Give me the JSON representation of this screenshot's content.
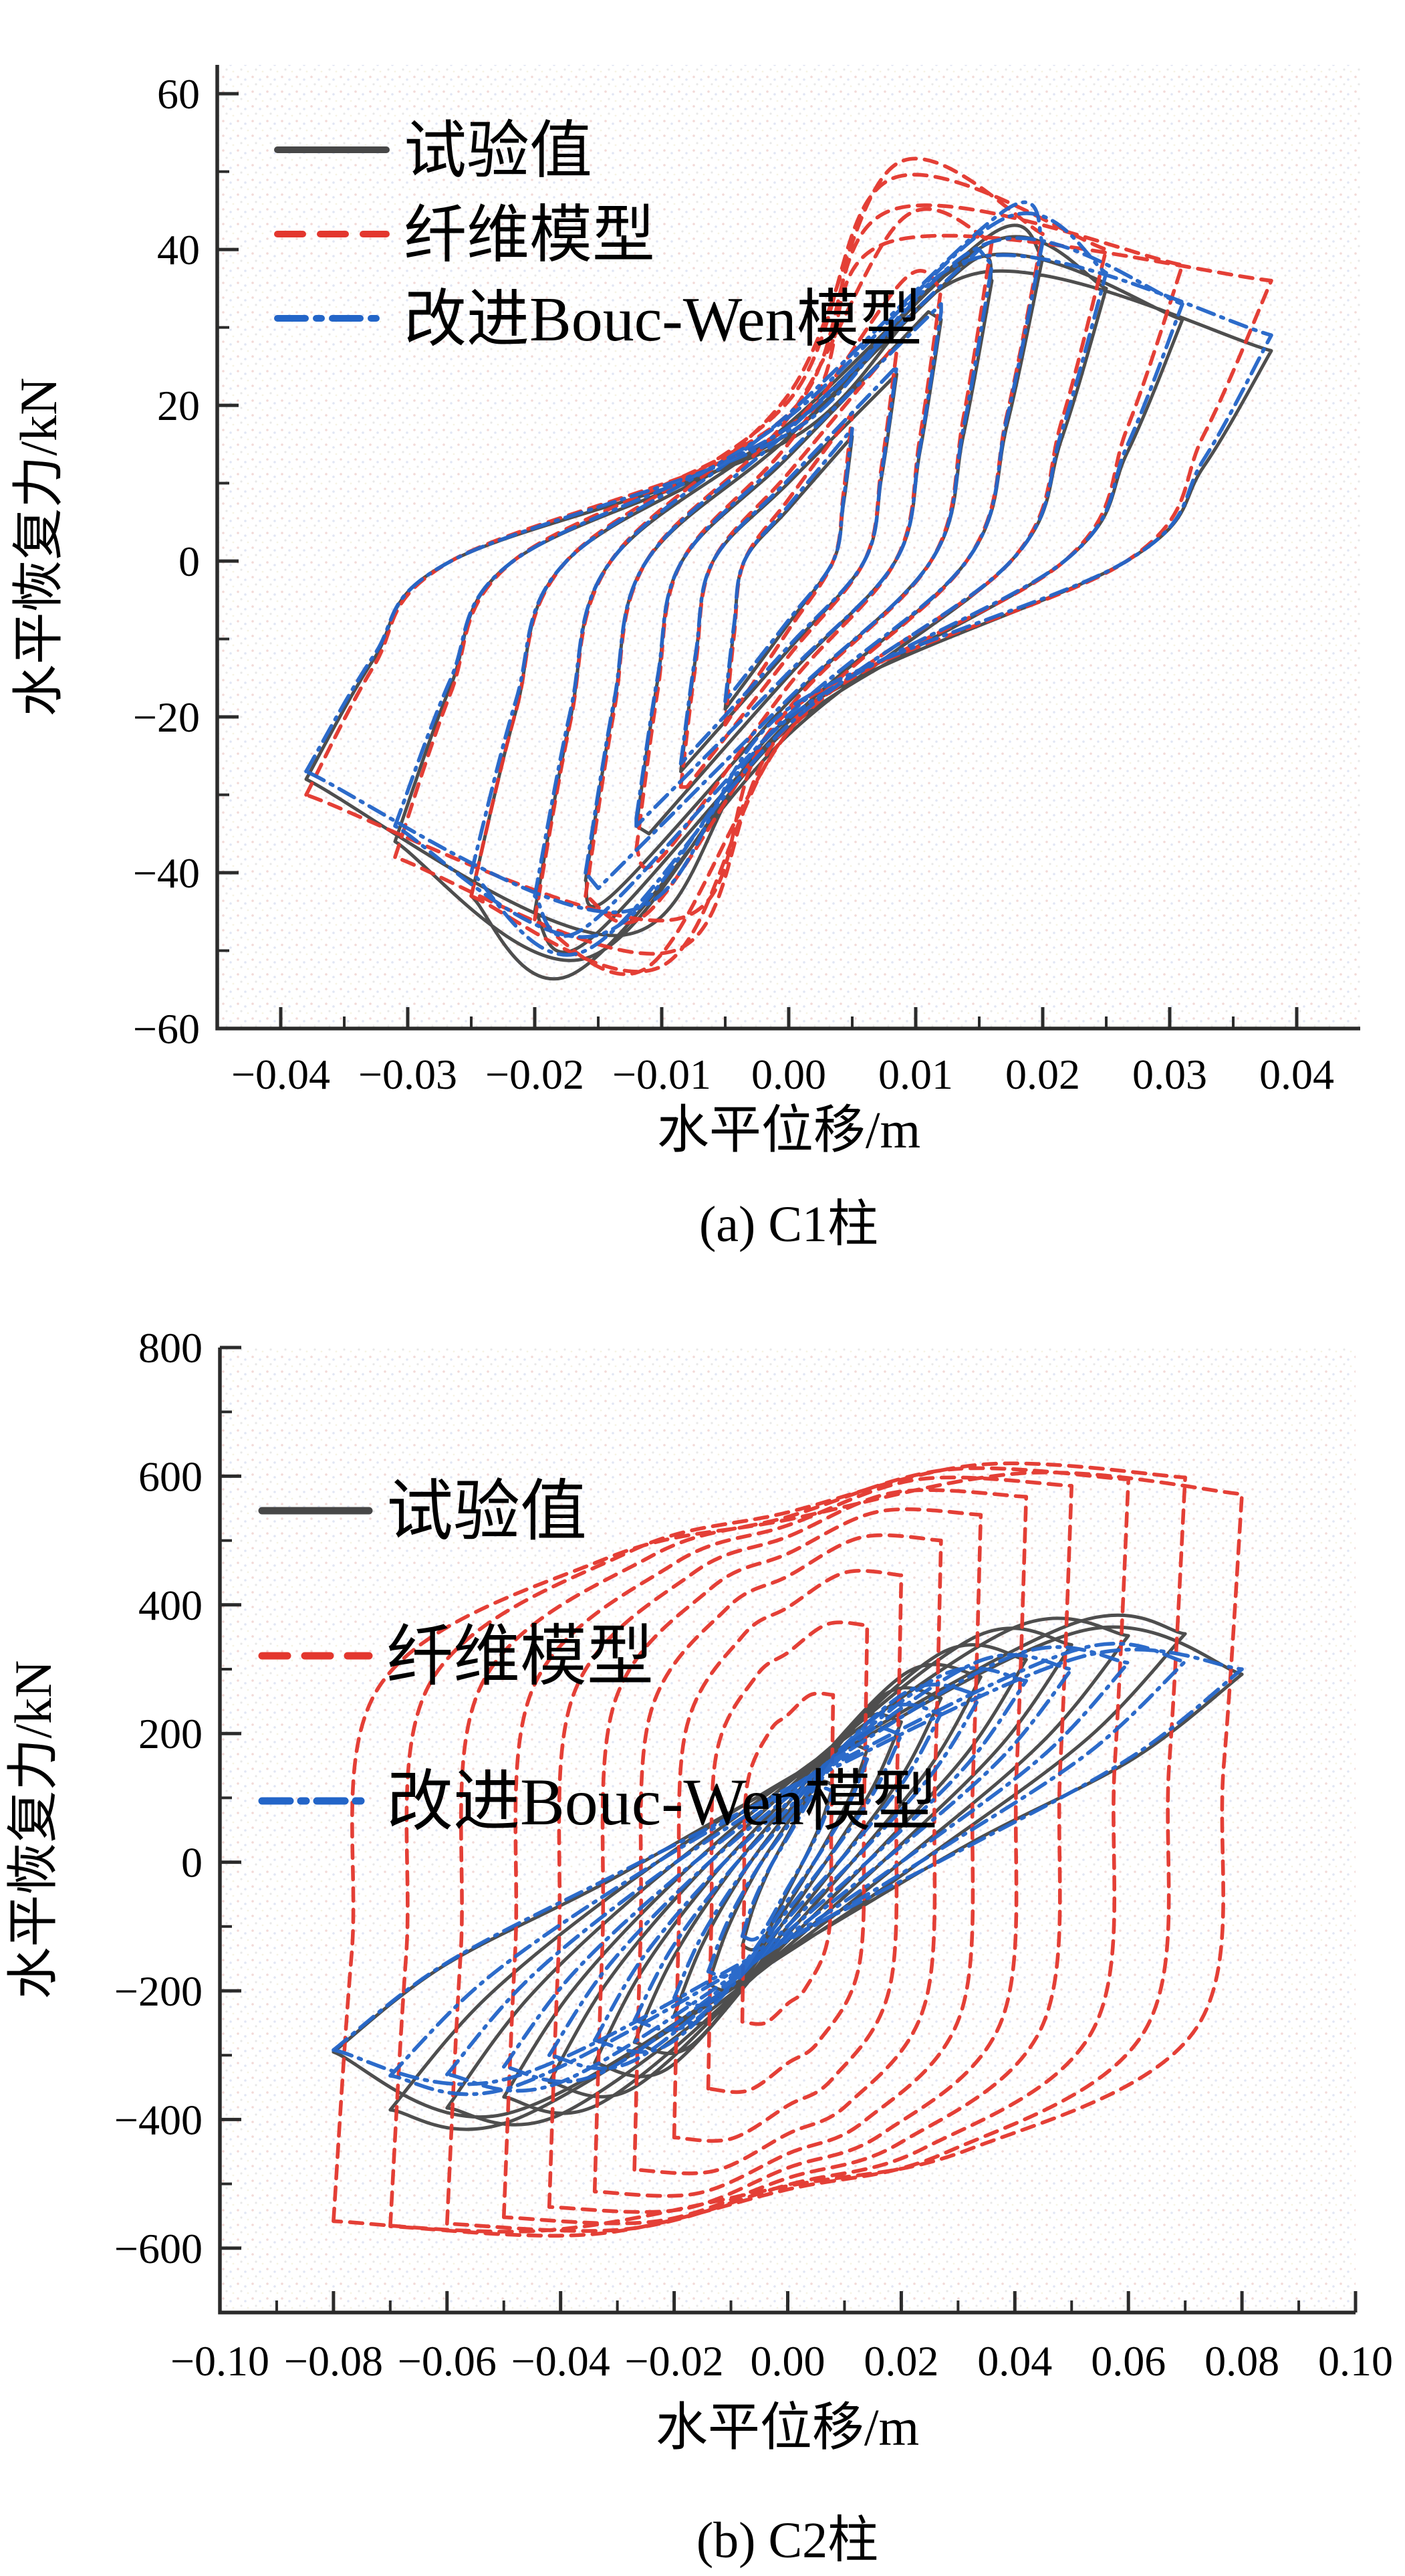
{
  "figure": {
    "charts": [
      {
        "id": "a",
        "caption": "(a) C1柱",
        "xlabel": "水平位移/m",
        "ylabel": "水平恢复力/kN",
        "x_tick_labels": [
          "−0.04",
          "−0.03",
          "−0.02",
          "−0.01",
          "0.00",
          "0.01",
          "0.02",
          "0.03",
          "0.04"
        ],
        "x_tick_values": [
          -0.04,
          -0.03,
          -0.02,
          -0.01,
          0,
          0.01,
          0.02,
          0.03,
          0.04
        ],
        "y_tick_labels": [
          "60",
          "40",
          "20",
          "0",
          "−20",
          "−40",
          "−60"
        ],
        "y_tick_values": [
          60,
          40,
          20,
          0,
          -20,
          -40,
          -60
        ],
        "legend": [
          {
            "label": "试验值",
            "color": "#474747",
            "dash": "solid"
          },
          {
            "label": "纤维模型",
            "color": "#e3372e",
            "dash": "dashed"
          },
          {
            "label": "改进Bouc-Wen模型",
            "color": "#2365c8",
            "dash": "dash-dot"
          }
        ]
      },
      {
        "id": "b",
        "caption": "(b) C2柱",
        "xlabel": "水平位移/m",
        "ylabel": "水平恢复力/kN",
        "x_tick_labels": [
          "−0.10",
          "−0.08",
          "−0.06",
          "−0.04",
          "−0.02",
          "0.00",
          "0.02",
          "0.04",
          "0.06",
          "0.08",
          "0.10"
        ],
        "x_tick_values": [
          -0.1,
          -0.08,
          -0.06,
          -0.04,
          -0.02,
          0,
          0.02,
          0.04,
          0.06,
          0.08,
          0.1
        ],
        "y_tick_labels": [
          "800",
          "600",
          "400",
          "200",
          "0",
          "−200",
          "−400",
          "−600"
        ],
        "y_tick_values": [
          800,
          600,
          400,
          200,
          0,
          -200,
          -400,
          -600
        ],
        "legend": [
          {
            "label": "试验值",
            "color": "#474747",
            "dash": "solid"
          },
          {
            "label": "纤维模型",
            "color": "#e3372e",
            "dash": "dashed"
          },
          {
            "label": "改进Bouc-Wen模型",
            "color": "#2365c8",
            "dash": "dash-dot"
          }
        ]
      }
    ]
  },
  "chart_data": [
    {
      "type": "line",
      "subtype": "hysteresis-loops",
      "title": "(a) C1柱",
      "xlabel": "水平位移/m",
      "ylabel": "水平恢复力/kN",
      "xlim": [
        -0.045,
        0.045
      ],
      "ylim": [
        -60,
        63.7
      ],
      "grid": false,
      "legend_position": "upper-left",
      "cycle_fields": [
        "amplitude_m",
        "peak_pos_kN",
        "peak_pos_x_m",
        "tip_pos_kN",
        "peak_neg_kN",
        "peak_neg_x_m",
        "tip_neg_kN"
      ],
      "series": [
        {
          "name": "试验值",
          "color": "#474747",
          "style": "solid",
          "shape": "banana",
          "cycles": [
            [
              0.005,
              16,
              0.005,
              16,
              19,
              0.005,
              19
            ],
            [
              0.0085,
              24,
              0.0085,
              24,
              27,
              0.0085,
              27
            ],
            [
              0.012,
              32,
              0.011,
              31,
              35,
              0.011,
              34
            ],
            [
              0.016,
              38,
              0.014,
              36,
              43,
              0.014,
              41
            ],
            [
              0.02,
              42,
              0.016,
              39,
              49,
              0.016,
              45
            ],
            [
              0.025,
              41,
              0.016,
              35,
              53,
              0.017,
              43
            ],
            [
              0.031,
              39,
              0.015,
              31,
              51,
              0.016,
              36
            ],
            [
              0.038,
              37,
              0.015,
              27,
              48,
              0.013,
              28
            ]
          ]
        },
        {
          "name": "纤维模型",
          "color": "#e3372e",
          "style": "dashed",
          "shape": "banana",
          "cycles": [
            [
              0.005,
              19,
              0.005,
              19,
              21,
              0.005,
              21
            ],
            [
              0.0085,
              27,
              0.008,
              27,
              29,
              0.008,
              29
            ],
            [
              0.012,
              36,
              0.009,
              35,
              38,
              0.01,
              37
            ],
            [
              0.016,
              44,
              0.009,
              41,
              45,
              0.011,
              43
            ],
            [
              0.02,
              51,
              0.0085,
              42,
              52,
              0.011,
              46
            ],
            [
              0.025,
              49,
              0.008,
              40,
              52,
              0.01,
              43
            ],
            [
              0.031,
              45,
              0.008,
              38,
              50,
              0.009,
              38
            ],
            [
              0.038,
              41,
              0.008,
              36,
              46,
              0.009,
              30
            ]
          ]
        },
        {
          "name": "改进Bouc-Wen模型",
          "color": "#2365c8",
          "style": "dash-dot",
          "shape": "banana",
          "cycles": [
            [
              0.005,
              17,
              0.005,
              17,
              18,
              0.005,
              18
            ],
            [
              0.0085,
              25,
              0.0085,
              25,
              26,
              0.0085,
              26
            ],
            [
              0.012,
              33,
              0.012,
              32,
              34,
              0.012,
              33
            ],
            [
              0.016,
              40,
              0.015,
              38,
              42,
              0.015,
              40
            ],
            [
              0.02,
              45,
              0.017,
              41,
              47,
              0.016,
              43
            ],
            [
              0.025,
              44,
              0.017,
              37,
              50,
              0.016,
              40
            ],
            [
              0.031,
              41,
              0.016,
              33,
              48,
              0.015,
              34
            ],
            [
              0.038,
              39,
              0.015,
              29,
              45,
              0.013,
              27
            ]
          ]
        }
      ]
    },
    {
      "type": "line",
      "subtype": "hysteresis-loops",
      "title": "(b) C2柱",
      "xlabel": "水平位移/m",
      "ylabel": "水平恢复力/kN",
      "xlim": [
        -0.1,
        0.1
      ],
      "ylim": [
        -700,
        800
      ],
      "grid": false,
      "legend_position": "upper-left",
      "cycle_fields": [
        "amplitude_m",
        "peak_pos_kN",
        "peak_pos_x_m",
        "tip_pos_kN",
        "peak_neg_kN",
        "peak_neg_x_m",
        "tip_neg_kN"
      ],
      "series": [
        {
          "name": "试验值",
          "color": "#474747",
          "style": "solid",
          "shape": "spindle",
          "cycles": [
            [
              0.008,
              120,
              0.005,
              120,
              130,
              0.005,
              130
            ],
            [
              0.014,
              175,
              0.009,
              175,
              190,
              0.009,
              190
            ],
            [
              0.02,
              220,
              0.013,
              218,
              240,
              0.013,
              238
            ],
            [
              0.027,
              260,
              0.017,
              255,
              285,
              0.017,
              280
            ],
            [
              0.034,
              295,
              0.021,
              288,
              320,
              0.021,
              312
            ],
            [
              0.042,
              325,
              0.027,
              315,
              350,
              0.027,
              342
            ],
            [
              0.05,
              350,
              0.033,
              338,
              375,
              0.033,
              365
            ],
            [
              0.06,
              365,
              0.04,
              352,
              392,
              0.04,
              382
            ],
            [
              0.07,
              370,
              0.05,
              355,
              400,
              0.048,
              385
            ],
            [
              0.08,
              360,
              0.052,
              292,
              392,
              0.05,
              295
            ]
          ]
        },
        {
          "name": "纤维模型",
          "color": "#e3372e",
          "style": "dashed",
          "shape": "fat",
          "cycles": [
            [
              0.008,
              260,
              0.004,
              260,
              250,
              0.004,
              248
            ],
            [
              0.014,
              370,
              0.007,
              368,
              355,
              0.007,
              352
            ],
            [
              0.02,
              450,
              0.01,
              446,
              430,
              0.01,
              428
            ],
            [
              0.027,
              505,
              0.013,
              500,
              480,
              0.013,
              478
            ],
            [
              0.034,
              545,
              0.016,
              540,
              515,
              0.016,
              512
            ],
            [
              0.042,
              575,
              0.019,
              568,
              540,
              0.019,
              536
            ],
            [
              0.05,
              595,
              0.023,
              585,
              558,
              0.023,
              552
            ],
            [
              0.06,
              610,
              0.028,
              595,
              570,
              0.028,
              562
            ],
            [
              0.07,
              618,
              0.034,
              598,
              578,
              0.034,
              566
            ],
            [
              0.08,
              605,
              0.042,
              572,
              572,
              0.042,
              558
            ]
          ]
        },
        {
          "name": "改进Bouc-Wen模型",
          "color": "#2365c8",
          "style": "dash-dot",
          "shape": "spindle",
          "cycles": [
            [
              0.008,
              110,
              0.005,
              110,
              115,
              0.005,
              115
            ],
            [
              0.014,
              160,
              0.009,
              160,
              170,
              0.009,
              170
            ],
            [
              0.02,
              200,
              0.013,
              198,
              213,
              0.013,
              211
            ],
            [
              0.027,
              235,
              0.017,
              231,
              250,
              0.017,
              246
            ],
            [
              0.034,
              265,
              0.021,
              259,
              283,
              0.021,
              277
            ],
            [
              0.042,
              290,
              0.027,
              282,
              308,
              0.027,
              300
            ],
            [
              0.05,
              310,
              0.033,
              300,
              328,
              0.033,
              318
            ],
            [
              0.06,
              322,
              0.04,
              310,
              342,
              0.04,
              330
            ],
            [
              0.07,
              328,
              0.05,
              312,
              348,
              0.048,
              332
            ],
            [
              0.08,
              320,
              0.052,
              300,
              338,
              0.05,
              292
            ]
          ]
        }
      ]
    }
  ],
  "colors": {
    "experimental": "#474747",
    "fiber_model": "#e3372e",
    "bouc_wen_model": "#2365c8",
    "spine": "#2b2b2b",
    "background": "#ffffff"
  }
}
